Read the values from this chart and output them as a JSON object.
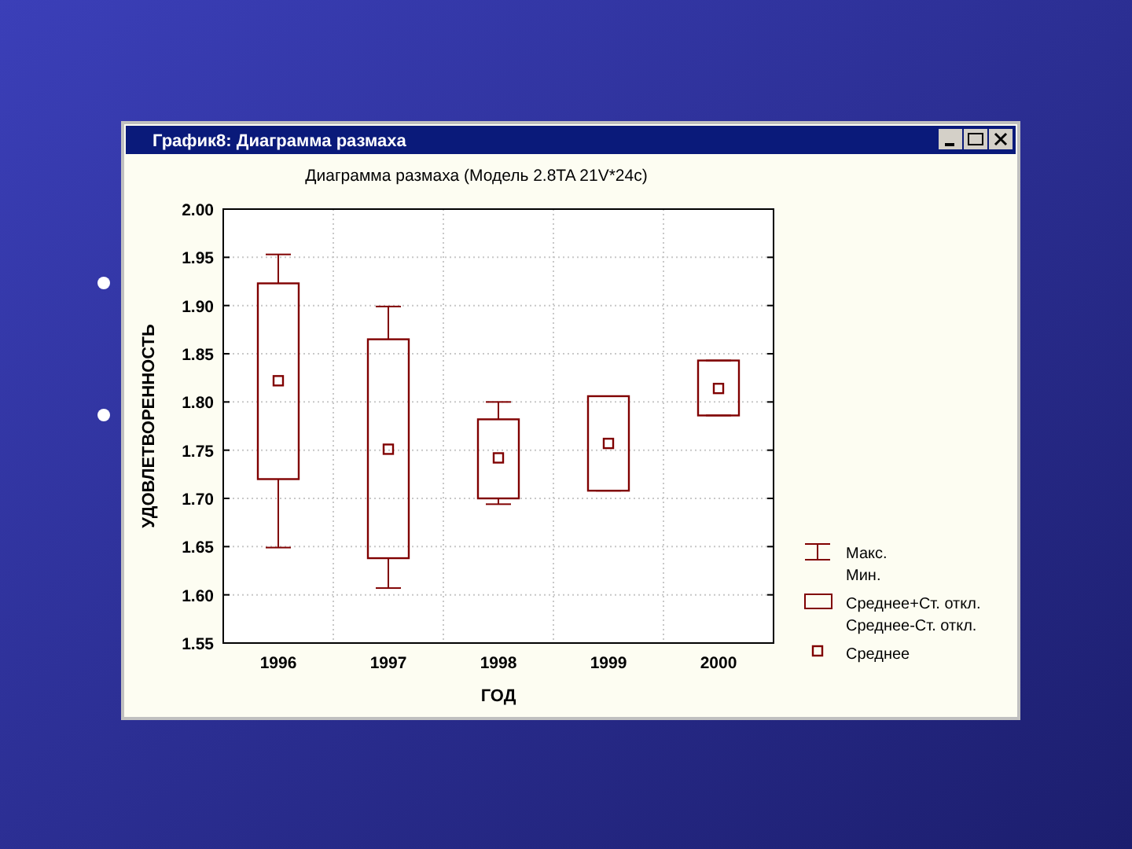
{
  "chart_data": {
    "type": "box",
    "title": "Диаграмма размаха (Модель 2.8TA 21V*24c)",
    "xlabel": "ГОД",
    "ylabel": "УДОВЛЕТВОРЕННОСТЬ",
    "categories": [
      "1996",
      "1997",
      "1998",
      "1999",
      "2000"
    ],
    "series": [
      {
        "color": "#800000",
        "boxes": [
          {
            "low": 1.649,
            "q1": 1.72,
            "median": 1.822,
            "q3": 1.923,
            "high": 1.953
          },
          {
            "low": 1.607,
            "q1": 1.638,
            "median": 1.751,
            "q3": 1.865,
            "high": 1.899
          },
          {
            "low": 1.694,
            "q1": 1.7,
            "median": 1.742,
            "q3": 1.782,
            "high": 1.8
          },
          {
            "low": 1.708,
            "q1": 1.708,
            "median": 1.757,
            "q3": 1.806,
            "high": 1.806
          },
          {
            "low": 1.786,
            "q1": 1.786,
            "median": 1.814,
            "q3": 1.843,
            "high": 1.843
          }
        ]
      }
    ],
    "ylim": [
      1.55,
      2.0
    ],
    "yticks": [
      1.55,
      {
        "value": 1.6,
        "label": "1.60"
      },
      1.65,
      {
        "value": 1.7,
        "label": "1.70"
      },
      1.75,
      {
        "value": 1.8,
        "label": "1.80"
      },
      1.85,
      {
        "value": 1.9,
        "label": "1.90"
      },
      1.95,
      {
        "value": 2.0,
        "label": "2.00"
      }
    ],
    "grid": true,
    "marker": "square",
    "annotations": [
      "График8: Диаграмма размаха",
      "Макс.",
      "Мин.",
      "Среднее+Ст. откл.",
      "Среднее-Ст. откл.",
      "Среднее"
    ]
  }
}
